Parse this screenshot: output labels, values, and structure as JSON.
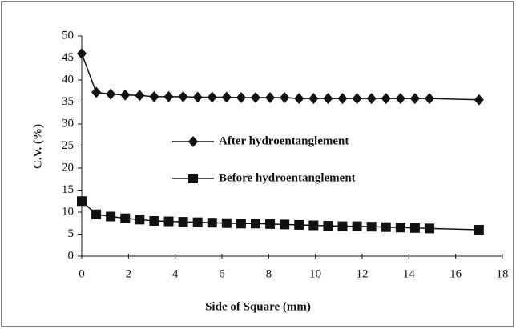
{
  "chart_data": {
    "type": "line",
    "xlabel": "Side of Square (mm)",
    "ylabel": "C.V. (%)",
    "x": [
      0,
      0.62,
      1.24,
      1.86,
      2.48,
      3.1,
      3.72,
      4.34,
      4.96,
      5.58,
      6.2,
      6.82,
      7.44,
      8.06,
      8.68,
      9.3,
      9.92,
      10.54,
      11.16,
      11.78,
      12.4,
      13.02,
      13.64,
      14.26,
      14.88,
      17
    ],
    "series": [
      {
        "name": "After hydroentanglement",
        "color": "#111111",
        "marker": "diamond",
        "values": [
          46,
          37.2,
          36.8,
          36.6,
          36.5,
          36.2,
          36.2,
          36.2,
          36.1,
          36.1,
          36.1,
          36.0,
          36.0,
          36.0,
          36.0,
          35.8,
          35.8,
          35.8,
          35.8,
          35.8,
          35.8,
          35.8,
          35.8,
          35.8,
          35.8,
          35.5
        ]
      },
      {
        "name": "Before hydroentanglement",
        "color": "#111111",
        "marker": "square",
        "values": [
          12.5,
          9.5,
          9.0,
          8.6,
          8.3,
          8.0,
          7.9,
          7.8,
          7.7,
          7.6,
          7.5,
          7.4,
          7.4,
          7.3,
          7.2,
          7.1,
          7.0,
          6.9,
          6.8,
          6.8,
          6.7,
          6.6,
          6.5,
          6.4,
          6.3,
          6.0
        ]
      }
    ],
    "xlim": [
      0,
      18
    ],
    "xticks": [
      0,
      2,
      4,
      6,
      8,
      10,
      12,
      14,
      16,
      18
    ],
    "ylim": [
      0,
      50
    ],
    "yticks": [
      0,
      5,
      10,
      15,
      20,
      25,
      30,
      35,
      40,
      45,
      50
    ],
    "grid": false,
    "legend": "center-left"
  }
}
